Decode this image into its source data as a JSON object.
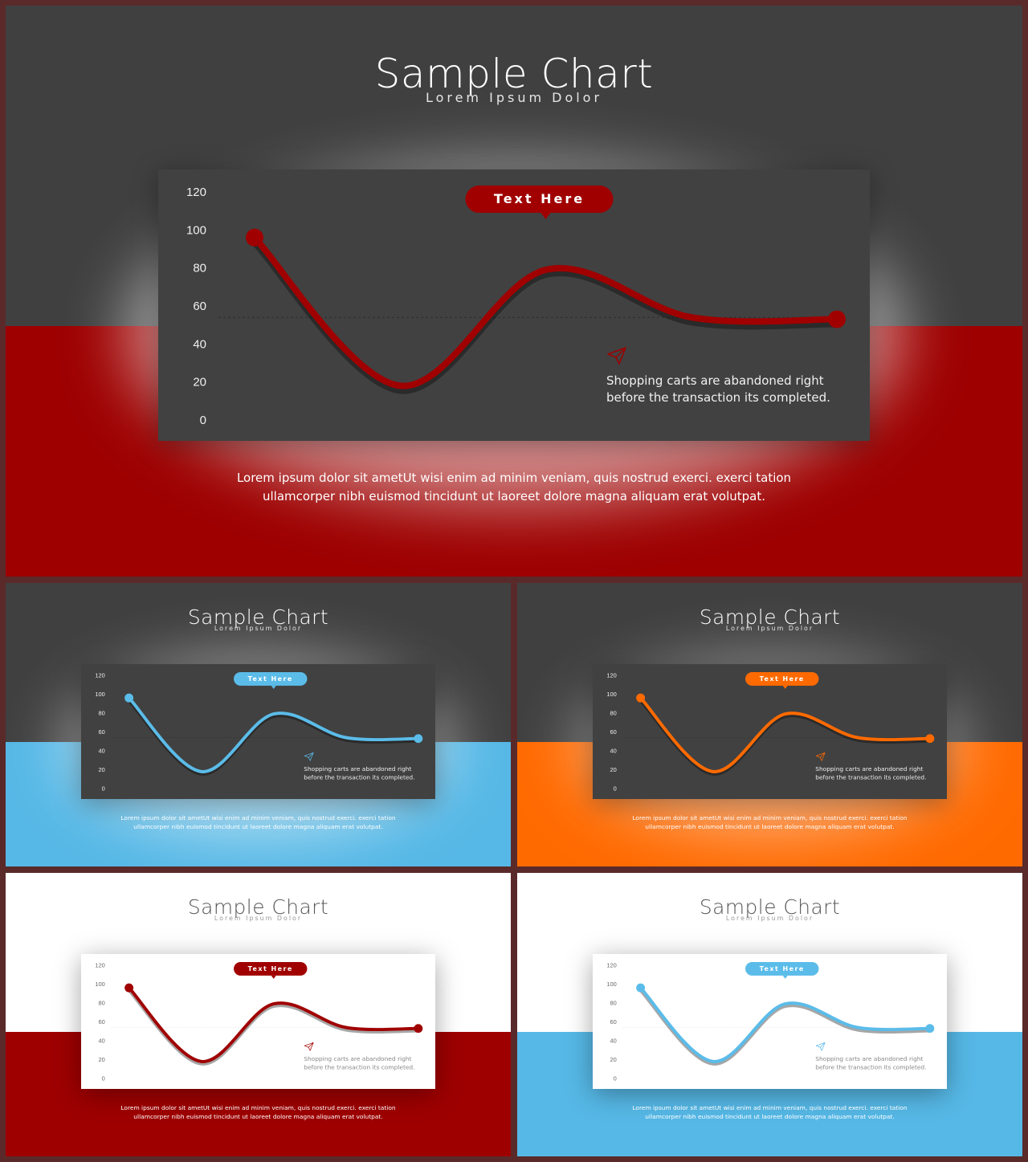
{
  "slides": [
    {
      "id": "main",
      "title": "Sample Chart",
      "subtitle": "Lorem Ipsum Dolor",
      "theme": {
        "bg": "#404040",
        "band": "#9e0000",
        "card": "#414141",
        "line": "#a00000",
        "text": "#ffffff",
        "sub": "#e6e6e6",
        "axis": "#f0f0f0",
        "note": "#f0f0f0",
        "glow": "rgba(255,255,255,0.55)"
      },
      "callout": "Text Here",
      "note": [
        "Shopping carts are abandoned right",
        "before the transaction its completed."
      ],
      "footer": [
        "Lorem ipsum dolor sit ametUt wisi enim ad minim veniam, quis nostrud exerci. exerci tation",
        "ullamcorper nibh euismod tincidunt ut laoreet dolore magna aliquam erat volutpat."
      ],
      "icon": "paper-plane-icon"
    },
    {
      "id": "blue-dark",
      "title": "Sample Chart",
      "subtitle": "Lorem Ipsum Dolor",
      "theme": {
        "bg": "#404040",
        "band": "#56b8e6",
        "card": "#414141",
        "line": "#5bbce9",
        "text": "#ffffff",
        "sub": "#e6e6e6",
        "axis": "#f0f0f0",
        "note": "#f0f0f0",
        "glow": "rgba(255,255,255,0.6)"
      },
      "callout": "Text Here",
      "note": [
        "Shopping carts are abandoned right",
        "before the transaction its completed."
      ],
      "footer": [
        "Lorem ipsum dolor sit ametUt wisi enim ad minim veniam, quis nostrud exerci. exerci tation",
        "ullamcorper nibh euismod tincidunt ut laoreet dolore magna aliquam erat volutpat."
      ],
      "icon": "paper-plane-icon"
    },
    {
      "id": "orange-dark",
      "title": "Sample Chart",
      "subtitle": "Lorem Ipsum Dolor",
      "theme": {
        "bg": "#404040",
        "band": "#ff6a00",
        "card": "#414141",
        "line": "#ff6a00",
        "text": "#ffffff",
        "sub": "#e6e6e6",
        "axis": "#f0f0f0",
        "note": "#f0f0f0",
        "glow": "rgba(255,255,255,0.5)"
      },
      "callout": "Text Here",
      "note": [
        "Shopping carts are abandoned right",
        "before the transaction its completed."
      ],
      "footer": [
        "Lorem ipsum dolor sit ametUt wisi enim ad minim veniam, quis nostrud exerci. exerci tation",
        "ullamcorper nibh euismod tincidunt ut laoreet dolore magna aliquam erat volutpat."
      ],
      "icon": "paper-plane-icon"
    },
    {
      "id": "red-light",
      "title": "Sample Chart",
      "subtitle": "Lorem Ipsum Dolor",
      "theme": {
        "bg": "#ffffff",
        "band": "#9e0000",
        "card": "#ffffff",
        "line": "#a00000",
        "text": "#555555",
        "sub": "#999999",
        "axis": "#666666",
        "note": "#888888",
        "glow": "rgba(0,0,0,0.0)"
      },
      "callout": "Text Here",
      "note": [
        "Shopping carts are abandoned right",
        "before the transaction its completed."
      ],
      "footer": [
        "Lorem ipsum dolor sit ametUt wisi enim ad minim veniam, quis nostrud exerci. exerci tation",
        "ullamcorper nibh euismod tincidunt ut laoreet dolore magna aliquam erat volutpat."
      ],
      "icon": "paper-plane-icon"
    },
    {
      "id": "blue-light",
      "title": "Sample Chart",
      "subtitle": "Lorem Ipsum Dolor",
      "theme": {
        "bg": "#ffffff",
        "band": "#56b8e6",
        "card": "#ffffff",
        "line": "#5bbce9",
        "text": "#555555",
        "sub": "#999999",
        "axis": "#666666",
        "note": "#888888",
        "glow": "rgba(0,0,0,0.0)"
      },
      "callout": "Text Here",
      "note": [
        "Shopping carts are abandoned right",
        "before the transaction its completed."
      ],
      "footer": [
        "Lorem ipsum dolor sit ametUt wisi enim ad minim veniam, quis nostrud exerci. exerci tation",
        "ullamcorper nibh euismod tincidunt ut laoreet dolore magna aliquam erat volutpat."
      ],
      "icon": "paper-plane-icon"
    }
  ],
  "chart_data": {
    "type": "line",
    "x": [
      0,
      1,
      2,
      3,
      4
    ],
    "values": [
      96,
      18,
      79,
      54,
      53
    ],
    "smooth": true,
    "yticks": [
      0,
      20,
      40,
      60,
      80,
      100,
      120
    ],
    "ylim": [
      0,
      120
    ],
    "xlabel": "",
    "ylabel": "",
    "grid": false,
    "reference_line": 54,
    "callout_at": 2
  }
}
